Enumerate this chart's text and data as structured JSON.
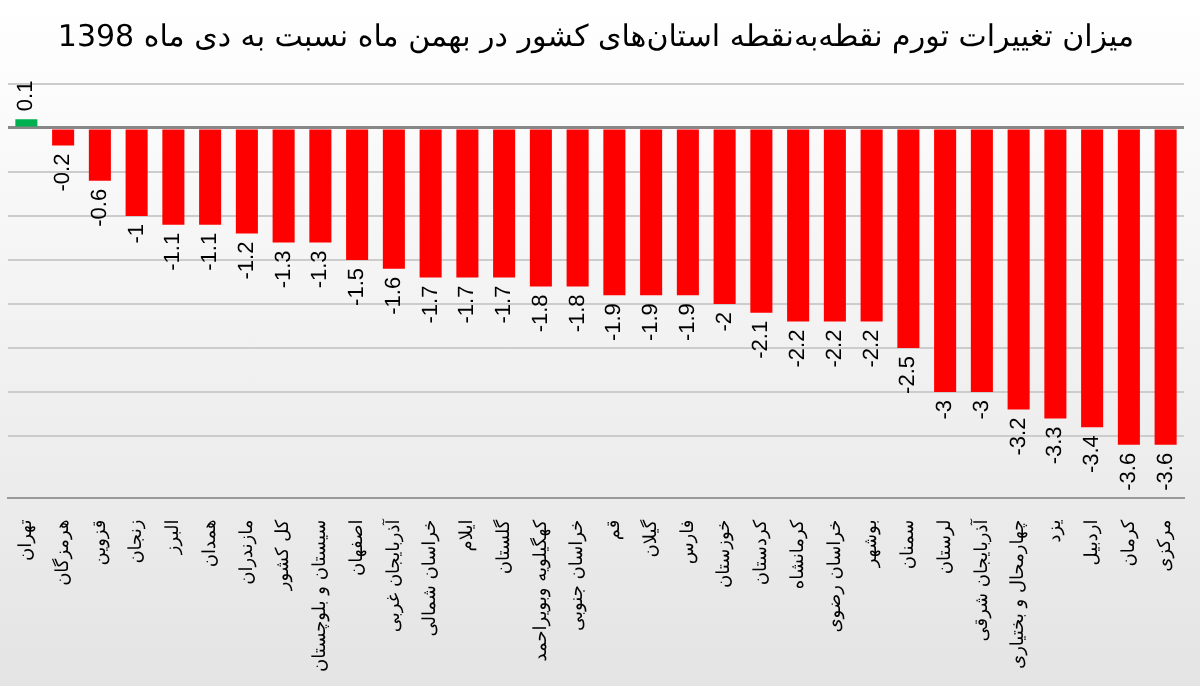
{
  "chart_data": {
    "type": "bar",
    "title": "میزان تغییرات تورم نقطه‌به‌نقطه استان‌های کشور در بهمن ماه نسبت به دی ماه 1398",
    "categories": [
      "تهران",
      "هرمزگان",
      "قزوین",
      "زنجان",
      "البرز",
      "همدان",
      "مازندران",
      "کل کشور",
      "سیستان و بلوچستان",
      "اصفهان",
      "آذربایجان غربی",
      "خراسان شمالی",
      "ایلام",
      "گلستان",
      "کهگیلویه وبویراحمد",
      "خراسان جنوبی",
      "قم",
      "گیلان",
      "فارس",
      "خوزستان",
      "کردستان",
      "کرمانشاه",
      "خراسان رضوی",
      "بوشهر",
      "سمنان",
      "لرستان",
      "آذربایجان شرقی",
      "چهارمحال و بختیاری",
      "یزد",
      "اردبیل",
      "کرمان",
      "مرکزی"
    ],
    "values": [
      0.1,
      -0.2,
      -0.6,
      -1,
      -1.1,
      -1.1,
      -1.2,
      -1.3,
      -1.3,
      -1.5,
      -1.6,
      -1.7,
      -1.7,
      -1.7,
      -1.8,
      -1.8,
      -1.9,
      -1.9,
      -1.9,
      -2,
      -2.1,
      -2.2,
      -2.2,
      -2.2,
      -2.5,
      -3,
      -3,
      -3.2,
      -3.3,
      -3.4,
      -3.6,
      -3.6
    ],
    "colors": [
      "#00b050",
      "#ff0000",
      "#ff0000",
      "#ff0000",
      "#ff0000",
      "#ff0000",
      "#ff0000",
      "#ff0000",
      "#ff0000",
      "#ff0000",
      "#ff0000",
      "#ff0000",
      "#ff0000",
      "#ff0000",
      "#ff0000",
      "#ff0000",
      "#ff0000",
      "#ff0000",
      "#ff0000",
      "#ff0000",
      "#ff0000",
      "#ff0000",
      "#ff0000",
      "#ff0000",
      "#ff0000",
      "#ff0000",
      "#ff0000",
      "#ff0000",
      "#ff0000",
      "#ff0000",
      "#ff0000",
      "#ff0000"
    ],
    "ylim": [
      -4.2,
      0.5
    ],
    "yticks": [
      {
        "value": 0.5,
        "label": null
      },
      {
        "value": 0,
        "label": null
      },
      {
        "value": -0.5,
        "label": null
      },
      {
        "value": -1,
        "label": null
      },
      {
        "value": -1.5,
        "label": null
      },
      {
        "value": -2,
        "label": null
      },
      {
        "value": -2.5,
        "label": null
      },
      {
        "value": -3,
        "label": null
      },
      {
        "value": -3.5,
        "label": null
      }
    ],
    "tick_labels": "x",
    "grid": "y",
    "data_labels": true,
    "legend": false
  }
}
